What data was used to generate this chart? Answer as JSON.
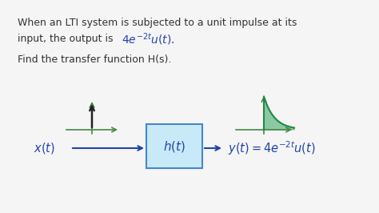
{
  "background_color": "#f5f5f5",
  "text_color_black": "#333333",
  "blue": "#2244aa",
  "dark_blue": "#1a3388",
  "green_axis": "#448844",
  "green_curve": "#228844",
  "green_fill": "#66bb88",
  "box_fill": "#c8eaf8",
  "box_edge": "#4488cc",
  "fig_width": 4.74,
  "fig_height": 2.66,
  "dpi": 100,
  "line1": "When an LTI system is subjected to a unit impulse at its",
  "line2_black": "input, the output is ",
  "line3": "Find the transfer function H(s)."
}
